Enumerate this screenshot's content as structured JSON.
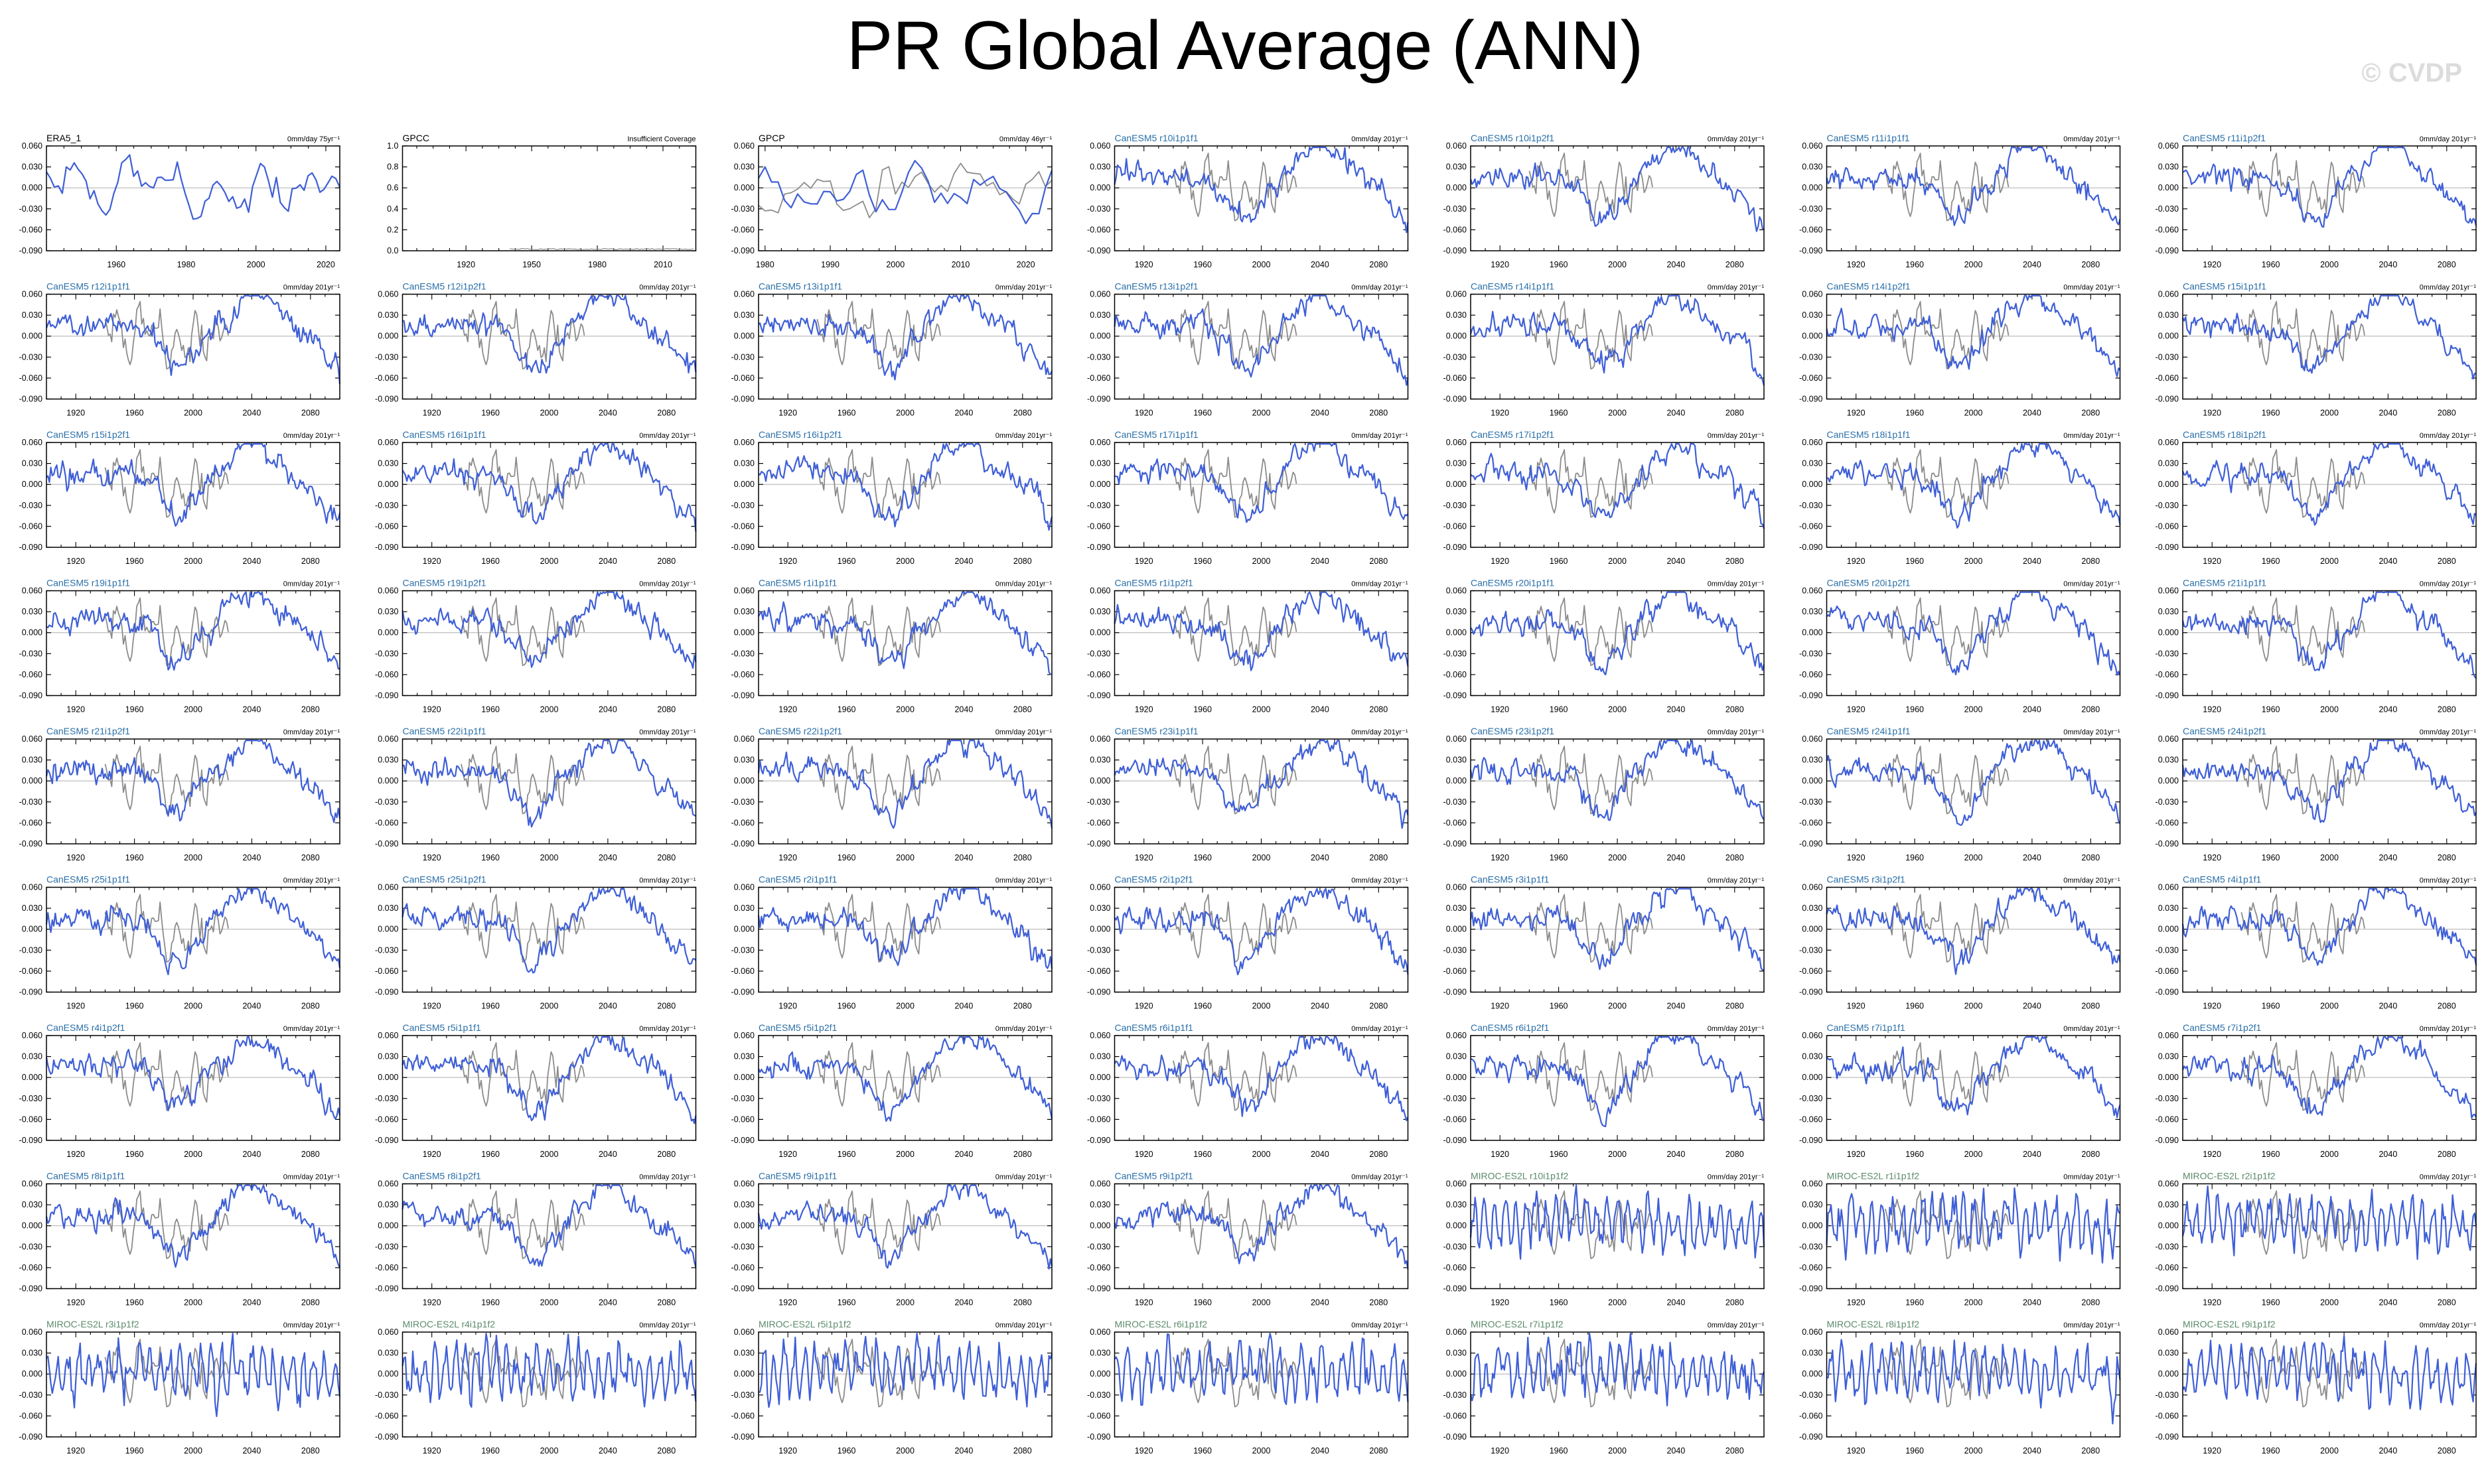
{
  "page": {
    "title": "PR Global Average (ANN)",
    "watermark": "© CVDP"
  },
  "colors": {
    "model_line": "#3f5fd6",
    "obs_line": "#8c8c8c",
    "obs_title": "#000000",
    "canesm_title": "#2a6fa8",
    "miroc_title": "#5b8a6a",
    "axes": "#000000",
    "zero_line": "#b8b8b8"
  },
  "chart_data": {
    "type": "line",
    "panels": [
      {
        "name": "ERA5_1",
        "group": "obs",
        "stat": "0mm/day 75yr⁻¹",
        "xticks": [
          1960,
          1980,
          2000,
          2020
        ],
        "xlim": [
          1940,
          2024
        ],
        "ylim": [
          -0.09,
          0.06
        ],
        "yticks": [
          "0.060",
          "0.030",
          "0.000",
          "-0.030",
          "-0.060",
          "-0.090"
        ],
        "seed": 3
      },
      {
        "name": "GPCC",
        "group": "obs",
        "stat": "Insufficient Coverage",
        "xticks": [
          1920,
          1950,
          1980,
          2010
        ],
        "xlim": [
          1891,
          2025
        ],
        "ylim": [
          0,
          1
        ],
        "yticks": [
          "1.0",
          "0.8",
          "0.6",
          "0.4",
          "0.2",
          "0.0"
        ],
        "seed": 5
      },
      {
        "name": "GPCP",
        "group": "obs",
        "stat": "0mm/day 46yr⁻¹",
        "xticks": [
          1980,
          1990,
          2000,
          2010,
          2020
        ],
        "xlim": [
          1979,
          2024
        ],
        "ylim": [
          -0.09,
          0.06
        ],
        "yticks": [
          "0.060",
          "0.030",
          "0.000",
          "-0.030",
          "-0.060",
          "-0.090"
        ],
        "seed": 7
      },
      {
        "name": "CanESM5 r10i1p1f1",
        "group": "canesm",
        "stat": "0mm/day 201yr⁻¹",
        "seed": 11
      },
      {
        "name": "CanESM5 r10i1p2f1",
        "group": "canesm",
        "stat": "0mm/day 201yr⁻¹",
        "seed": 13
      },
      {
        "name": "CanESM5 r11i1p1f1",
        "group": "canesm",
        "stat": "0mm/day 201yr⁻¹",
        "seed": 17
      },
      {
        "name": "CanESM5 r11i1p2f1",
        "group": "canesm",
        "stat": "0mm/day 201yr⁻¹",
        "seed": 19
      },
      {
        "name": "CanESM5 r12i1p1f1",
        "group": "canesm",
        "stat": "0mm/day 201yr⁻¹",
        "seed": 23
      },
      {
        "name": "CanESM5 r12i1p2f1",
        "group": "canesm",
        "stat": "0mm/day 201yr⁻¹",
        "seed": 29
      },
      {
        "name": "CanESM5 r13i1p1f1",
        "group": "canesm",
        "stat": "0mm/day 201yr⁻¹",
        "seed": 31
      },
      {
        "name": "CanESM5 r13i1p2f1",
        "group": "canesm",
        "stat": "0mm/day 201yr⁻¹",
        "seed": 37
      },
      {
        "name": "CanESM5 r14i1p1f1",
        "group": "canesm",
        "stat": "0mm/day 201yr⁻¹",
        "seed": 41
      },
      {
        "name": "CanESM5 r14i1p2f1",
        "group": "canesm",
        "stat": "0mm/day 201yr⁻¹",
        "seed": 43
      },
      {
        "name": "CanESM5 r15i1p1f1",
        "group": "canesm",
        "stat": "0mm/day 201yr⁻¹",
        "seed": 47
      },
      {
        "name": "CanESM5 r15i1p2f1",
        "group": "canesm",
        "stat": "0mm/day 201yr⁻¹",
        "seed": 53
      },
      {
        "name": "CanESM5 r16i1p1f1",
        "group": "canesm",
        "stat": "0mm/day 201yr⁻¹",
        "seed": 59
      },
      {
        "name": "CanESM5 r16i1p2f1",
        "group": "canesm",
        "stat": "0mm/day 201yr⁻¹",
        "seed": 61
      },
      {
        "name": "CanESM5 r17i1p1f1",
        "group": "canesm",
        "stat": "0mm/day 201yr⁻¹",
        "seed": 67
      },
      {
        "name": "CanESM5 r17i1p2f1",
        "group": "canesm",
        "stat": "0mm/day 201yr⁻¹",
        "seed": 71
      },
      {
        "name": "CanESM5 r18i1p1f1",
        "group": "canesm",
        "stat": "0mm/day 201yr⁻¹",
        "seed": 73
      },
      {
        "name": "CanESM5 r18i1p2f1",
        "group": "canesm",
        "stat": "0mm/day 201yr⁻¹",
        "seed": 79
      },
      {
        "name": "CanESM5 r19i1p1f1",
        "group": "canesm",
        "stat": "0mm/day 201yr⁻¹",
        "seed": 83
      },
      {
        "name": "CanESM5 r19i1p2f1",
        "group": "canesm",
        "stat": "0mm/day 201yr⁻¹",
        "seed": 89
      },
      {
        "name": "CanESM5 r1i1p1f1",
        "group": "canesm",
        "stat": "0mm/day 201yr⁻¹",
        "seed": 97
      },
      {
        "name": "CanESM5 r1i1p2f1",
        "group": "canesm",
        "stat": "0mm/day 201yr⁻¹",
        "seed": 101
      },
      {
        "name": "CanESM5 r20i1p1f1",
        "group": "canesm",
        "stat": "0mm/day 201yr⁻¹",
        "seed": 103
      },
      {
        "name": "CanESM5 r20i1p2f1",
        "group": "canesm",
        "stat": "0mm/day 201yr⁻¹",
        "seed": 107
      },
      {
        "name": "CanESM5 r21i1p1f1",
        "group": "canesm",
        "stat": "0mm/day 201yr⁻¹",
        "seed": 109
      },
      {
        "name": "CanESM5 r21i1p2f1",
        "group": "canesm",
        "stat": "0mm/day 201yr⁻¹",
        "seed": 113
      },
      {
        "name": "CanESM5 r22i1p1f1",
        "group": "canesm",
        "stat": "0mm/day 201yr⁻¹",
        "seed": 127
      },
      {
        "name": "CanESM5 r22i1p2f1",
        "group": "canesm",
        "stat": "0mm/day 201yr⁻¹",
        "seed": 131
      },
      {
        "name": "CanESM5 r23i1p1f1",
        "group": "canesm",
        "stat": "0mm/day 201yr⁻¹",
        "seed": 137
      },
      {
        "name": "CanESM5 r23i1p2f1",
        "group": "canesm",
        "stat": "0mm/day 201yr⁻¹",
        "seed": 139
      },
      {
        "name": "CanESM5 r24i1p1f1",
        "group": "canesm",
        "stat": "0mm/day 201yr⁻¹",
        "seed": 149
      },
      {
        "name": "CanESM5 r24i1p2f1",
        "group": "canesm",
        "stat": "0mm/day 201yr⁻¹",
        "seed": 151
      },
      {
        "name": "CanESM5 r25i1p1f1",
        "group": "canesm",
        "stat": "0mm/day 201yr⁻¹",
        "seed": 157
      },
      {
        "name": "CanESM5 r25i1p2f1",
        "group": "canesm",
        "stat": "0mm/day 201yr⁻¹",
        "seed": 163
      },
      {
        "name": "CanESM5 r2i1p1f1",
        "group": "canesm",
        "stat": "0mm/day 201yr⁻¹",
        "seed": 167
      },
      {
        "name": "CanESM5 r2i1p2f1",
        "group": "canesm",
        "stat": "0mm/day 201yr⁻¹",
        "seed": 173
      },
      {
        "name": "CanESM5 r3i1p1f1",
        "group": "canesm",
        "stat": "0mm/day 201yr⁻¹",
        "seed": 179
      },
      {
        "name": "CanESM5 r3i1p2f1",
        "group": "canesm",
        "stat": "0mm/day 201yr⁻¹",
        "seed": 181
      },
      {
        "name": "CanESM5 r4i1p1f1",
        "group": "canesm",
        "stat": "0mm/day 201yr⁻¹",
        "seed": 191
      },
      {
        "name": "CanESM5 r4i1p2f1",
        "group": "canesm",
        "stat": "0mm/day 201yr⁻¹",
        "seed": 193
      },
      {
        "name": "CanESM5 r5i1p1f1",
        "group": "canesm",
        "stat": "0mm/day 201yr⁻¹",
        "seed": 197
      },
      {
        "name": "CanESM5 r5i1p2f1",
        "group": "canesm",
        "stat": "0mm/day 201yr⁻¹",
        "seed": 199
      },
      {
        "name": "CanESM5 r6i1p1f1",
        "group": "canesm",
        "stat": "0mm/day 201yr⁻¹",
        "seed": 211
      },
      {
        "name": "CanESM5 r6i1p2f1",
        "group": "canesm",
        "stat": "0mm/day 201yr⁻¹",
        "seed": 223
      },
      {
        "name": "CanESM5 r7i1p1f1",
        "group": "canesm",
        "stat": "0mm/day 201yr⁻¹",
        "seed": 227
      },
      {
        "name": "CanESM5 r7i1p2f1",
        "group": "canesm",
        "stat": "0mm/day 201yr⁻¹",
        "seed": 229
      },
      {
        "name": "CanESM5 r8i1p1f1",
        "group": "canesm",
        "stat": "0mm/day 201yr⁻¹",
        "seed": 233
      },
      {
        "name": "CanESM5 r8i1p2f1",
        "group": "canesm",
        "stat": "0mm/day 201yr⁻¹",
        "seed": 239
      },
      {
        "name": "CanESM5 r9i1p1f1",
        "group": "canesm",
        "stat": "0mm/day 201yr⁻¹",
        "seed": 241
      },
      {
        "name": "CanESM5 r9i1p2f1",
        "group": "canesm",
        "stat": "0mm/day 201yr⁻¹",
        "seed": 251
      },
      {
        "name": "MIROC-ES2L r10i1p1f2",
        "group": "miroc",
        "stat": "0mm/day 201yr⁻¹",
        "seed": 257
      },
      {
        "name": "MIROC-ES2L r1i1p1f2",
        "group": "miroc",
        "stat": "0mm/day 201yr⁻¹",
        "seed": 263
      },
      {
        "name": "MIROC-ES2L r2i1p1f2",
        "group": "miroc",
        "stat": "0mm/day 201yr⁻¹",
        "seed": 269
      },
      {
        "name": "MIROC-ES2L r3i1p1f2",
        "group": "miroc",
        "stat": "0mm/day 201yr⁻¹",
        "seed": 271
      },
      {
        "name": "MIROC-ES2L r4i1p1f2",
        "group": "miroc",
        "stat": "0mm/day 201yr⁻¹",
        "seed": 277
      },
      {
        "name": "MIROC-ES2L r5i1p1f2",
        "group": "miroc",
        "stat": "0mm/day 201yr⁻¹",
        "seed": 281
      },
      {
        "name": "MIROC-ES2L r6i1p1f2",
        "group": "miroc",
        "stat": "0mm/day 201yr⁻¹",
        "seed": 283
      },
      {
        "name": "MIROC-ES2L r7i1p1f2",
        "group": "miroc",
        "stat": "0mm/day 201yr⁻¹",
        "seed": 293
      },
      {
        "name": "MIROC-ES2L r8i1p1f2",
        "group": "miroc",
        "stat": "0mm/day 201yr⁻¹",
        "seed": 307
      },
      {
        "name": "MIROC-ES2L r9i1p1f2",
        "group": "miroc",
        "stat": "0mm/day 201yr⁻¹",
        "seed": 311
      }
    ],
    "model_defaults": {
      "xticks": [
        1920,
        1960,
        2000,
        2040,
        2080
      ],
      "xlim": [
        1900,
        2100
      ],
      "ylim": [
        -0.09,
        0.06
      ],
      "yticks": [
        "0.060",
        "0.030",
        "0.000",
        "-0.030",
        "-0.060",
        "-0.090"
      ]
    },
    "obs_overlay": {
      "name": "ERA5_1",
      "xlim": [
        1940,
        2024
      ]
    }
  }
}
